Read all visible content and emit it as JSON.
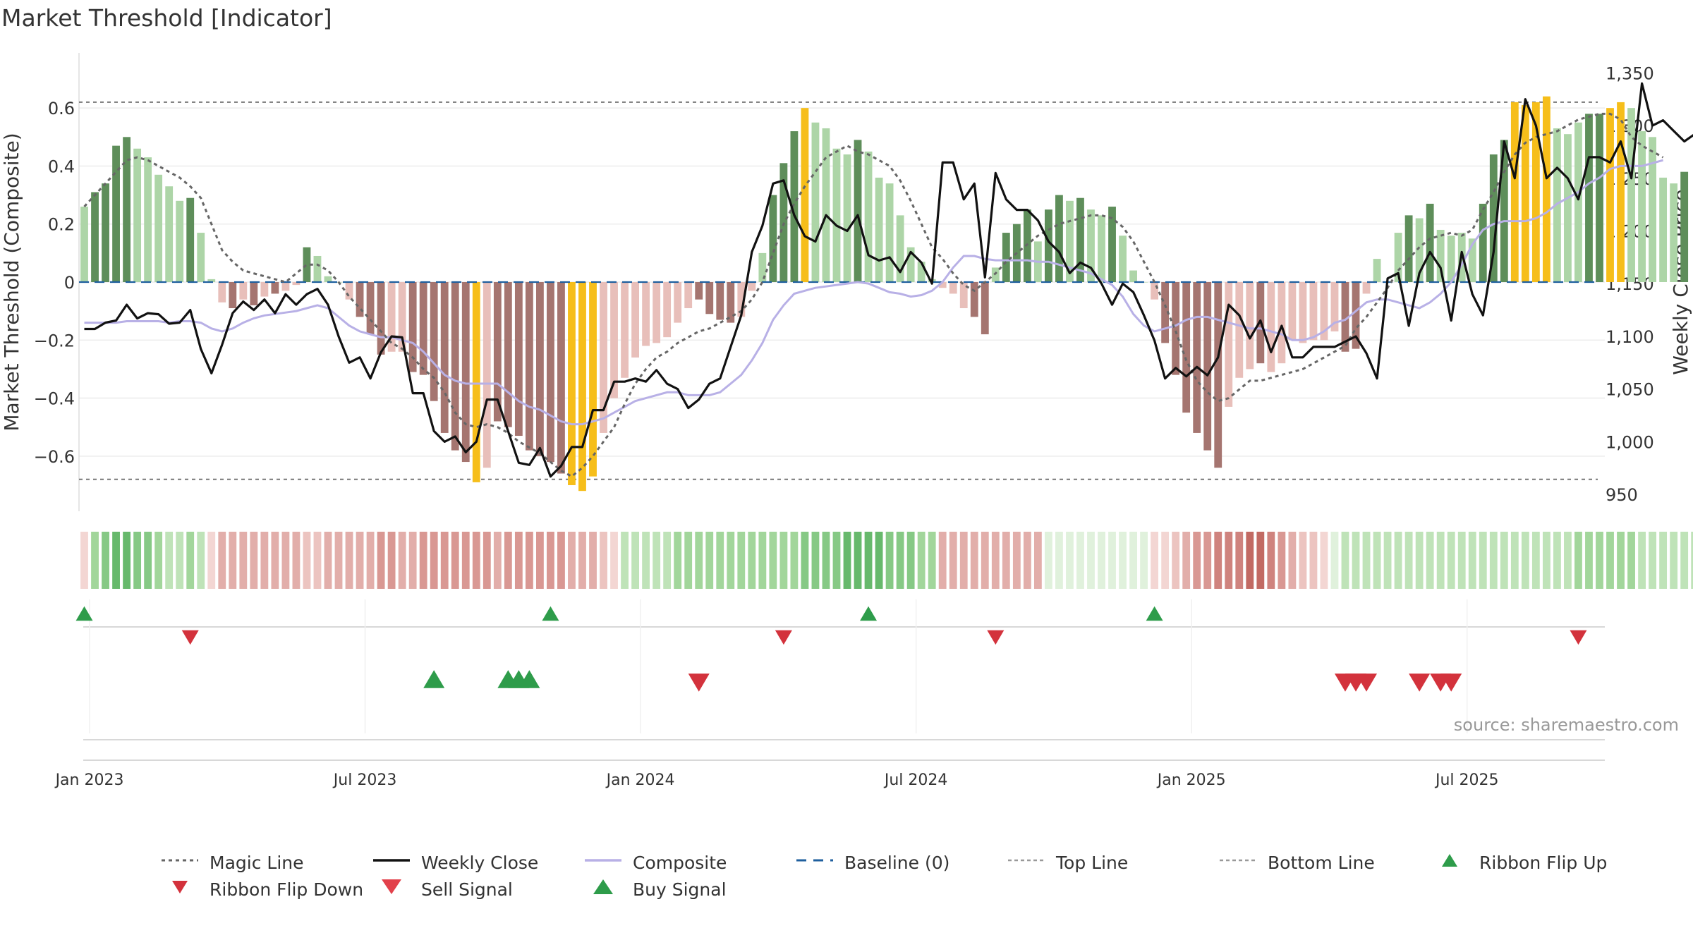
{
  "title": "Market Threshold [Indicator]",
  "source": "source: sharemaestro.com",
  "colors": {
    "dark_green": "#5e8e5a",
    "light_green": "#add5a7",
    "dark_red": "#a57570",
    "light_red": "#e8bfba",
    "gold": "#f6be1a",
    "close_line": "#111111",
    "composite_line": "#b8b0e6",
    "magic_line": "#666666",
    "baseline": "#1f5f9e",
    "buy": "#2e9c4a",
    "sell": "#d3323c"
  },
  "chart_data": {
    "type": "bar",
    "title": "Market Threshold [Indicator]",
    "xlabel": "",
    "ylabel": "Market Threshold (Composite)",
    "y2label": "Weekly Close Price",
    "ylim": [
      -0.79,
      0.79
    ],
    "y2lim": [
      934,
      1369
    ],
    "yticks": [
      0.6,
      0.4,
      0.2,
      0,
      -0.2,
      -0.4,
      -0.6
    ],
    "yticklabels": [
      "0.6",
      "0.4",
      "0.2",
      "0",
      "−0.2",
      "−0.4",
      "−0.6"
    ],
    "y2ticks": [
      1350,
      1300,
      1250,
      1200,
      1150,
      1100,
      1050,
      1000,
      950
    ],
    "y2ticklabels": [
      "1,350",
      "1,300",
      "1,250",
      "1,200",
      "1,150",
      "1,100",
      "1,050",
      "1,000",
      "950"
    ],
    "xticklabels": [
      "Jan 2023",
      "Jul 2023",
      "Jan 2024",
      "Jul 2024",
      "Jan 2025",
      "Jul 2025"
    ],
    "xtick_weeks": [
      1,
      27,
      53,
      79,
      105,
      131
    ],
    "num_weeks": 144,
    "top_line": 0.62,
    "bottom_line": -0.68,
    "legend_labels": [
      "Magic Line",
      "Weekly Close",
      "Composite",
      "Baseline (0)",
      "Top Line",
      "Bottom Line",
      "Ribbon Flip Up",
      "Ribbon Flip Down",
      "Sell Signal",
      "Buy Signal"
    ],
    "bars": [
      0.26,
      0.31,
      0.34,
      0.47,
      0.5,
      0.46,
      0.43,
      0.37,
      0.33,
      0.28,
      0.29,
      0.17,
      0.01,
      -0.07,
      -0.09,
      -0.06,
      -0.08,
      -0.05,
      -0.04,
      -0.03,
      -0.01,
      0.12,
      0.09,
      0.02,
      0.0,
      -0.06,
      -0.12,
      -0.18,
      -0.25,
      -0.24,
      -0.24,
      -0.31,
      -0.32,
      -0.41,
      -0.52,
      -0.58,
      -0.62,
      -0.69,
      -0.64,
      -0.48,
      -0.5,
      -0.53,
      -0.58,
      -0.6,
      -0.62,
      -0.66,
      -0.7,
      -0.72,
      -0.67,
      -0.52,
      -0.4,
      -0.33,
      -0.26,
      -0.22,
      -0.21,
      -0.19,
      -0.14,
      -0.09,
      -0.06,
      -0.11,
      -0.13,
      -0.14,
      -0.12,
      -0.03,
      0.1,
      0.3,
      0.41,
      0.52,
      0.6,
      0.55,
      0.53,
      0.46,
      0.44,
      0.49,
      0.45,
      0.36,
      0.34,
      0.23,
      0.12,
      0.07,
      0.01,
      -0.02,
      -0.04,
      -0.09,
      -0.12,
      -0.18,
      0.05,
      0.17,
      0.2,
      0.25,
      0.14,
      0.25,
      0.3,
      0.28,
      0.29,
      0.25,
      0.23,
      0.26,
      0.16,
      0.04,
      0.0,
      -0.06,
      -0.21,
      -0.32,
      -0.45,
      -0.52,
      -0.58,
      -0.64,
      -0.43,
      -0.33,
      -0.3,
      -0.28,
      -0.31,
      -0.28,
      -0.2,
      -0.21,
      -0.2,
      -0.2,
      -0.17,
      -0.24,
      -0.23,
      -0.04,
      0.08,
      0.0,
      0.17,
      0.23,
      0.22,
      0.27,
      0.18,
      0.16,
      0.17,
      0.15,
      0.27,
      0.44,
      0.49,
      0.62,
      0.61,
      0.62,
      0.64,
      0.53,
      0.51,
      0.55,
      0.58,
      0.58,
      0.6,
      0.62,
      0.6,
      0.52,
      0.5,
      0.36,
      0.34,
      0.38
    ],
    "bar_colors": [
      "lg",
      "dg",
      "dg",
      "dg",
      "dg",
      "lg",
      "lg",
      "lg",
      "lg",
      "lg",
      "dg",
      "lg",
      "lg",
      "lr",
      "dr",
      "lr",
      "dr",
      "lr",
      "dr",
      "lr",
      "lr",
      "dg",
      "lg",
      "lg",
      "lg",
      "lr",
      "dr",
      "dr",
      "dr",
      "lr",
      "lr",
      "dr",
      "dr",
      "dr",
      "dr",
      "dr",
      "dr",
      "go",
      "lr",
      "dr",
      "dr",
      "dr",
      "dr",
      "dr",
      "dr",
      "dr",
      "go",
      "go",
      "go",
      "lr",
      "lr",
      "lr",
      "lr",
      "lr",
      "lr",
      "lr",
      "lr",
      "lr",
      "dr",
      "dr",
      "dr",
      "dr",
      "lr",
      "lr",
      "lg",
      "dg",
      "dg",
      "dg",
      "go",
      "lg",
      "lg",
      "lg",
      "lg",
      "dg",
      "lg",
      "lg",
      "lg",
      "lg",
      "lg",
      "lg",
      "lg",
      "lr",
      "lr",
      "lr",
      "dr",
      "dr",
      "lg",
      "dg",
      "dg",
      "dg",
      "lg",
      "dg",
      "dg",
      "lg",
      "dg",
      "lg",
      "lg",
      "dg",
      "lg",
      "lg",
      "lg",
      "lr",
      "dr",
      "dr",
      "dr",
      "dr",
      "dr",
      "dr",
      "lr",
      "lr",
      "lr",
      "dr",
      "lr",
      "lr",
      "lr",
      "lr",
      "lr",
      "lr",
      "lr",
      "dr",
      "dr",
      "lr",
      "lg",
      "lg",
      "lg",
      "dg",
      "lg",
      "dg",
      "lg",
      "lg",
      "lg",
      "lg",
      "dg",
      "dg",
      "dg",
      "go",
      "go",
      "go",
      "go",
      "lg",
      "lg",
      "lg",
      "dg",
      "dg",
      "go",
      "go",
      "lg",
      "lg",
      "lg",
      "lg",
      "lg",
      "dg"
    ],
    "weekly_close": [
      1107,
      1107,
      1113,
      1115,
      1130,
      1117,
      1122,
      1121,
      1112,
      1113,
      1125,
      1088,
      1065,
      1092,
      1122,
      1133,
      1125,
      1135,
      1122,
      1140,
      1130,
      1140,
      1145,
      1130,
      1100,
      1075,
      1080,
      1060,
      1085,
      1100,
      1099,
      1046,
      1046,
      1010,
      1000,
      1005,
      990,
      1000,
      1040,
      1040,
      1010,
      980,
      978,
      994,
      967,
      977,
      995,
      995,
      1030,
      1030,
      1057,
      1057,
      1060,
      1057,
      1068,
      1055,
      1050,
      1032,
      1040,
      1055,
      1060,
      1090,
      1120,
      1180,
      1205,
      1245,
      1248,
      1215,
      1195,
      1190,
      1215,
      1205,
      1200,
      1215,
      1177,
      1172,
      1175,
      1161,
      1180,
      1170,
      1150,
      1265,
      1265,
      1230,
      1245,
      1156,
      1255,
      1230,
      1220,
      1220,
      1210,
      1190,
      1180,
      1160,
      1170,
      1165,
      1150,
      1130,
      1150,
      1142,
      1120,
      1096,
      1060,
      1070,
      1062,
      1071,
      1063,
      1080,
      1130,
      1120,
      1098,
      1115,
      1085,
      1110,
      1080,
      1080,
      1090,
      1090,
      1090,
      1095,
      1100,
      1084,
      1060,
      1155,
      1160,
      1110,
      1160,
      1180,
      1165,
      1115,
      1180,
      1140,
      1120,
      1180,
      1285,
      1250,
      1325,
      1300,
      1250,
      1260,
      1250,
      1230,
      1270,
      1270,
      1265,
      1285,
      1250,
      1340,
      1300,
      1305,
      1295,
      1285,
      1292,
      1305
    ],
    "composite": [
      -0.14,
      -0.14,
      -0.14,
      -0.14,
      -0.135,
      -0.135,
      -0.135,
      -0.135,
      -0.14,
      -0.135,
      -0.135,
      -0.14,
      -0.16,
      -0.17,
      -0.16,
      -0.14,
      -0.125,
      -0.115,
      -0.11,
      -0.105,
      -0.1,
      -0.09,
      -0.08,
      -0.09,
      -0.12,
      -0.15,
      -0.17,
      -0.18,
      -0.19,
      -0.19,
      -0.2,
      -0.21,
      -0.24,
      -0.28,
      -0.32,
      -0.34,
      -0.35,
      -0.35,
      -0.35,
      -0.35,
      -0.38,
      -0.41,
      -0.43,
      -0.44,
      -0.46,
      -0.48,
      -0.49,
      -0.49,
      -0.48,
      -0.47,
      -0.45,
      -0.43,
      -0.41,
      -0.4,
      -0.39,
      -0.38,
      -0.38,
      -0.39,
      -0.39,
      -0.39,
      -0.38,
      -0.35,
      -0.32,
      -0.27,
      -0.21,
      -0.13,
      -0.08,
      -0.04,
      -0.03,
      -0.02,
      -0.015,
      -0.01,
      -0.005,
      0.0,
      -0.005,
      -0.02,
      -0.035,
      -0.04,
      -0.05,
      -0.045,
      -0.03,
      0.0,
      0.05,
      0.09,
      0.09,
      0.08,
      0.075,
      0.075,
      0.075,
      0.075,
      0.07,
      0.07,
      0.06,
      0.05,
      0.04,
      0.03,
      0.01,
      -0.01,
      -0.05,
      -0.11,
      -0.15,
      -0.17,
      -0.16,
      -0.15,
      -0.13,
      -0.12,
      -0.12,
      -0.13,
      -0.14,
      -0.15,
      -0.16,
      -0.16,
      -0.17,
      -0.18,
      -0.2,
      -0.2,
      -0.19,
      -0.17,
      -0.14,
      -0.13,
      -0.1,
      -0.07,
      -0.06,
      -0.06,
      -0.07,
      -0.08,
      -0.09,
      -0.07,
      -0.04,
      0.0,
      0.06,
      0.13,
      0.18,
      0.2,
      0.21,
      0.21,
      0.21,
      0.22,
      0.24,
      0.27,
      0.29,
      0.31,
      0.34,
      0.36,
      0.39,
      0.4,
      0.4,
      0.4,
      0.41,
      0.42
    ],
    "magic_line": [
      0.26,
      0.3,
      0.34,
      0.38,
      0.42,
      0.43,
      0.42,
      0.4,
      0.38,
      0.36,
      0.33,
      0.29,
      0.2,
      0.11,
      0.07,
      0.04,
      0.03,
      0.02,
      0.01,
      0.0,
      0.03,
      0.06,
      0.06,
      0.04,
      0.0,
      -0.05,
      -0.09,
      -0.13,
      -0.17,
      -0.21,
      -0.23,
      -0.26,
      -0.3,
      -0.33,
      -0.38,
      -0.45,
      -0.49,
      -0.5,
      -0.49,
      -0.5,
      -0.52,
      -0.55,
      -0.57,
      -0.59,
      -0.62,
      -0.65,
      -0.67,
      -0.64,
      -0.6,
      -0.55,
      -0.5,
      -0.42,
      -0.35,
      -0.3,
      -0.26,
      -0.24,
      -0.21,
      -0.19,
      -0.17,
      -0.16,
      -0.14,
      -0.12,
      -0.1,
      -0.06,
      0.0,
      0.1,
      0.2,
      0.27,
      0.33,
      0.38,
      0.43,
      0.45,
      0.47,
      0.45,
      0.44,
      0.42,
      0.4,
      0.35,
      0.28,
      0.2,
      0.12,
      0.08,
      0.03,
      -0.01,
      -0.03,
      0.0,
      0.03,
      0.07,
      0.1,
      0.13,
      0.16,
      0.18,
      0.2,
      0.21,
      0.22,
      0.23,
      0.23,
      0.22,
      0.19,
      0.14,
      0.07,
      0.0,
      -0.08,
      -0.17,
      -0.27,
      -0.34,
      -0.38,
      -0.41,
      -0.4,
      -0.37,
      -0.34,
      -0.34,
      -0.33,
      -0.32,
      -0.31,
      -0.3,
      -0.28,
      -0.26,
      -0.24,
      -0.22,
      -0.16,
      -0.12,
      -0.07,
      -0.02,
      0.04,
      0.08,
      0.12,
      0.15,
      0.16,
      0.17,
      0.16,
      0.18,
      0.25,
      0.31,
      0.38,
      0.44,
      0.48,
      0.5,
      0.51,
      0.52,
      0.54,
      0.56,
      0.57,
      0.58,
      0.58,
      0.56,
      0.5,
      0.47,
      0.45,
      0.43
    ],
    "ribbon": [
      -1,
      3,
      4,
      5,
      5,
      4,
      4,
      3,
      2,
      2,
      3,
      2,
      -1,
      -3,
      -3,
      -3,
      -3,
      -3,
      -3,
      -3,
      -3,
      -2,
      -2,
      -3,
      -3,
      -3,
      -3,
      -3,
      -4,
      -4,
      -3,
      -3,
      -4,
      -4,
      -4,
      -4,
      -4,
      -4,
      -4,
      -3,
      -4,
      -4,
      -4,
      -4,
      -4,
      -4,
      -3,
      -3,
      -3,
      -2,
      -1,
      2,
      2,
      2,
      2,
      2,
      3,
      3,
      3,
      3,
      3,
      3,
      3,
      3,
      3,
      3,
      3,
      3,
      4,
      4,
      4,
      4,
      5,
      5,
      5,
      5,
      4,
      4,
      4,
      3,
      3,
      -3,
      -3,
      -3,
      -3,
      -3,
      -3,
      -3,
      -3,
      -3,
      -3,
      1,
      1,
      1,
      1,
      1,
      1,
      1,
      1,
      1,
      1,
      -1,
      -1,
      -2,
      -3,
      -4,
      -4,
      -5,
      -5,
      -5,
      -6,
      -6,
      -5,
      -4,
      -3,
      -2,
      -2,
      -1,
      1,
      2,
      2,
      2,
      2,
      2,
      2,
      2,
      2,
      2,
      2,
      2,
      2,
      2,
      2,
      2,
      2,
      2,
      2,
      2,
      2,
      2,
      2,
      3,
      3,
      3,
      3,
      3,
      3,
      2,
      2,
      2,
      2,
      2,
      2,
      2,
      2,
      -1,
      -1,
      -1
    ],
    "ribbon_flip_up_weeks": [
      0,
      44,
      74,
      101
    ],
    "ribbon_flip_down_weeks": [
      10,
      66,
      86,
      141
    ],
    "buy_signal_weeks": [
      33,
      40,
      41,
      42
    ],
    "sell_signal_weeks": [
      58,
      119,
      120,
      121,
      126,
      128,
      129
    ]
  }
}
